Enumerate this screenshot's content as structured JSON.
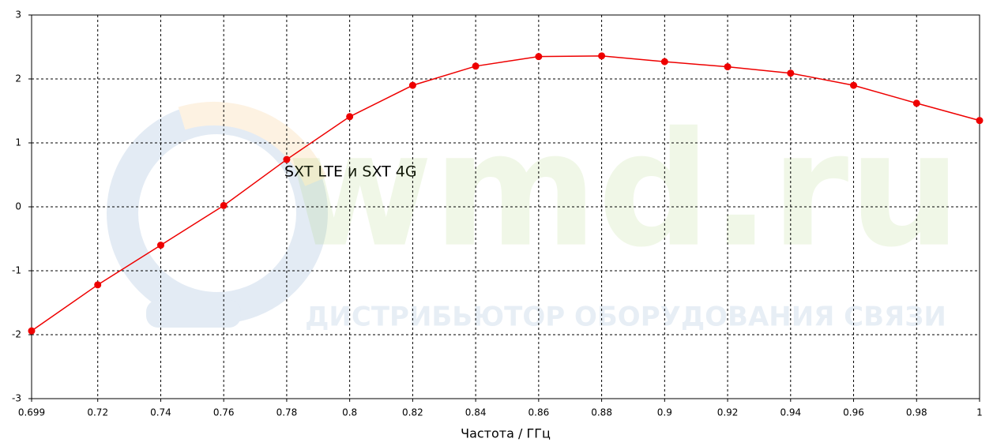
{
  "chart_data": {
    "type": "line",
    "x_label": "Частота / ГГц",
    "annotation": "SXT LTE и SXT 4G",
    "watermark": {
      "logo": "wmd.ru",
      "tagline": "ДИСТРИБЬЮТОР ОБОРУДОВАНИЯ СВЯЗИ"
    },
    "x": [
      0.699,
      0.72,
      0.74,
      0.76,
      0.78,
      0.8,
      0.82,
      0.84,
      0.86,
      0.88,
      0.9,
      0.92,
      0.94,
      0.96,
      0.98,
      1
    ],
    "values": [
      -1.94,
      -1.22,
      -0.6,
      0.02,
      0.74,
      1.41,
      1.9,
      2.2,
      2.35,
      2.36,
      2.27,
      2.19,
      2.09,
      1.9,
      1.62,
      1.35
    ],
    "color": "#ee0000",
    "xlim": [
      0.699,
      1
    ],
    "xticks": [
      0.699,
      0.72,
      0.74,
      0.76,
      0.78,
      0.8,
      0.82,
      0.84,
      0.86,
      0.88,
      0.9,
      0.92,
      0.94,
      0.96,
      0.98,
      1
    ],
    "ylim": [
      -3,
      3
    ],
    "yticks": [
      -3,
      -2,
      -1,
      0,
      1,
      2,
      3
    ],
    "grid": true
  }
}
